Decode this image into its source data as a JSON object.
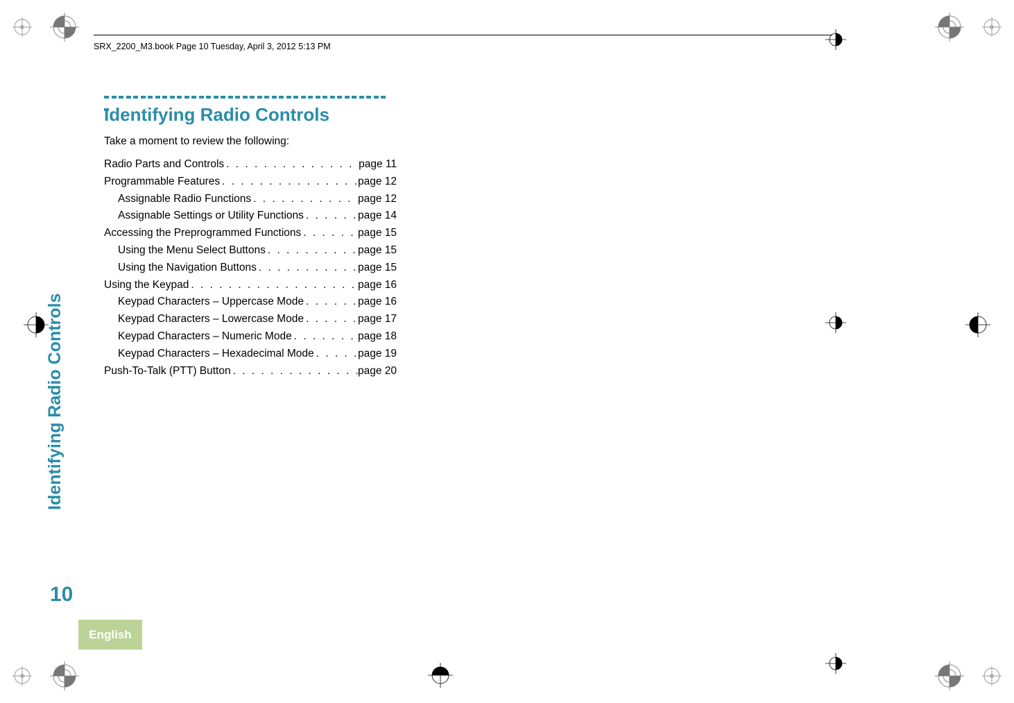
{
  "header": {
    "running_head": "SRX_2200_M3.book  Page 10  Tuesday, April 3, 2012  5:13 PM"
  },
  "section": {
    "title": "Identifying Radio Controls",
    "intro": "Take a moment to review the following:"
  },
  "toc": [
    {
      "label": "Radio Parts and Controls",
      "page": "page 11",
      "indent": false
    },
    {
      "label": "Programmable Features",
      "page": "page 12",
      "indent": false
    },
    {
      "label": "Assignable Radio Functions",
      "page": "page 12",
      "indent": true
    },
    {
      "label": "Assignable Settings or Utility Functions",
      "page": "page 14",
      "indent": true
    },
    {
      "label": "Accessing the Preprogrammed Functions",
      "page": "page 15",
      "indent": false
    },
    {
      "label": "Using the Menu Select Buttons",
      "page": "page 15",
      "indent": true
    },
    {
      "label": "Using the Navigation Buttons",
      "page": "page 15",
      "indent": true
    },
    {
      "label": "Using the Keypad",
      "page": "page 16",
      "indent": false
    },
    {
      "label": "Keypad Characters – Uppercase Mode",
      "page": "page 16",
      "indent": true
    },
    {
      "label": "Keypad Characters – Lowercase Mode",
      "page": "page 17",
      "indent": true
    },
    {
      "label": "Keypad Characters – Numeric Mode",
      "page": "page 18",
      "indent": true
    },
    {
      "label": "Keypad Characters – Hexadecimal Mode",
      "page": "page 19",
      "indent": true
    },
    {
      "label": "Push-To-Talk (PTT) Button",
      "page": "page 20",
      "indent": false
    }
  ],
  "side": {
    "vertical_label": "Identifying Radio Controls",
    "page_number": "10",
    "language": "English"
  },
  "style": {
    "accent_color": "#2a8da8",
    "tab_bg": "#bcd398",
    "tab_text": "#ffffff",
    "body_text": "#000000",
    "bg": "#ffffff",
    "title_fontsize": 26,
    "body_fontsize": 15.5,
    "vlabel_fontsize": 25,
    "pagenum_fontsize": 30,
    "header_fontsize": 12.5
  }
}
